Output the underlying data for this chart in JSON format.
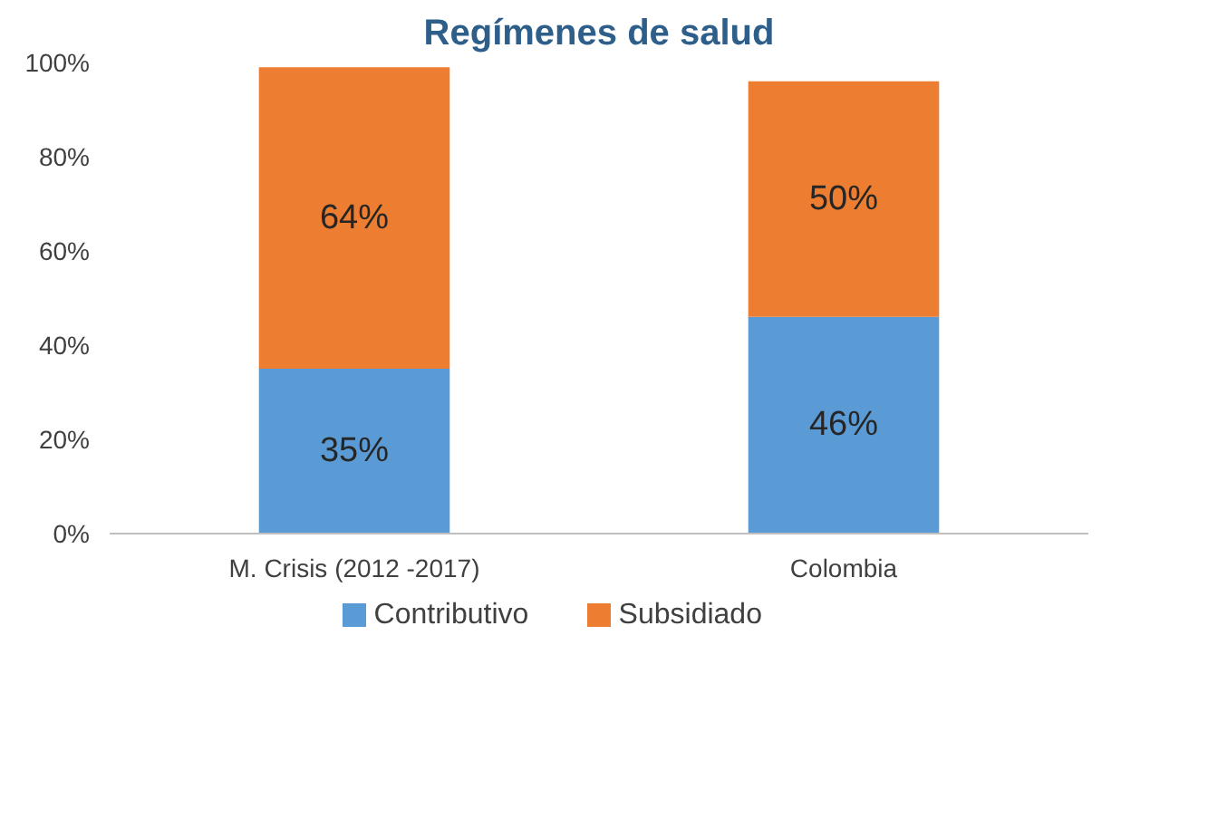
{
  "chart_data": {
    "type": "bar",
    "title": "Regímenes de salud",
    "categories": [
      "M. Crisis (2012 -2017)",
      "Colombia"
    ],
    "stacked": true,
    "series": [
      {
        "name": "Contributivo",
        "color": "#5b9bd5",
        "values": [
          35,
          46
        ],
        "value_labels": [
          "35%",
          "46%"
        ]
      },
      {
        "name": "Subsidiado",
        "color": "#ed7d31",
        "values": [
          64,
          50
        ],
        "value_labels": [
          "64%",
          "50%"
        ]
      }
    ],
    "ylim": [
      0,
      100
    ],
    "yticks": [
      {
        "value": 0,
        "label": "0%"
      },
      {
        "value": 20,
        "label": "20%"
      },
      {
        "value": 40,
        "label": "40%"
      },
      {
        "value": 60,
        "label": "60%"
      },
      {
        "value": 80,
        "label": "80%"
      },
      {
        "value": 100,
        "label": "100%"
      }
    ],
    "grid": false,
    "legend": "bottom"
  }
}
